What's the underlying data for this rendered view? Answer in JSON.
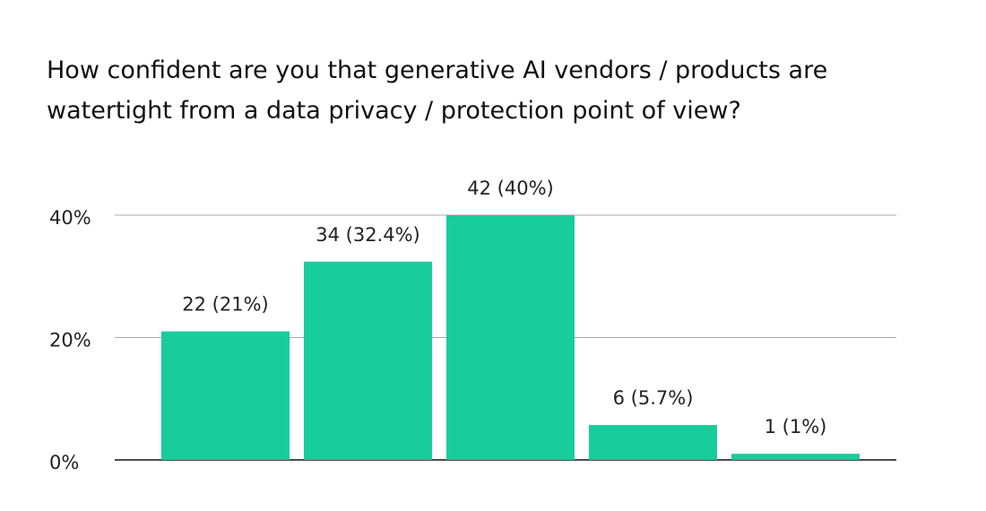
{
  "chart_data": {
    "type": "bar",
    "title": "How confident are you that generative AI vendors / products are watertight from a data privacy / protection point of view?",
    "categories": [
      null,
      null,
      null,
      null,
      null
    ],
    "values": [
      21,
      32.4,
      40,
      5.7,
      1
    ],
    "value_labels": [
      "22 (21%)",
      "34 (32.4%)",
      "42 (40%)",
      "6 (5.7%)",
      "1 (1%)"
    ],
    "color": "#19cc9c",
    "ylim": [
      0,
      40
    ],
    "yticks": [
      {
        "value": 0,
        "label": "0%"
      },
      {
        "value": 20,
        "label": "20%"
      },
      {
        "value": 40,
        "label": "40%"
      }
    ],
    "grid": true
  }
}
